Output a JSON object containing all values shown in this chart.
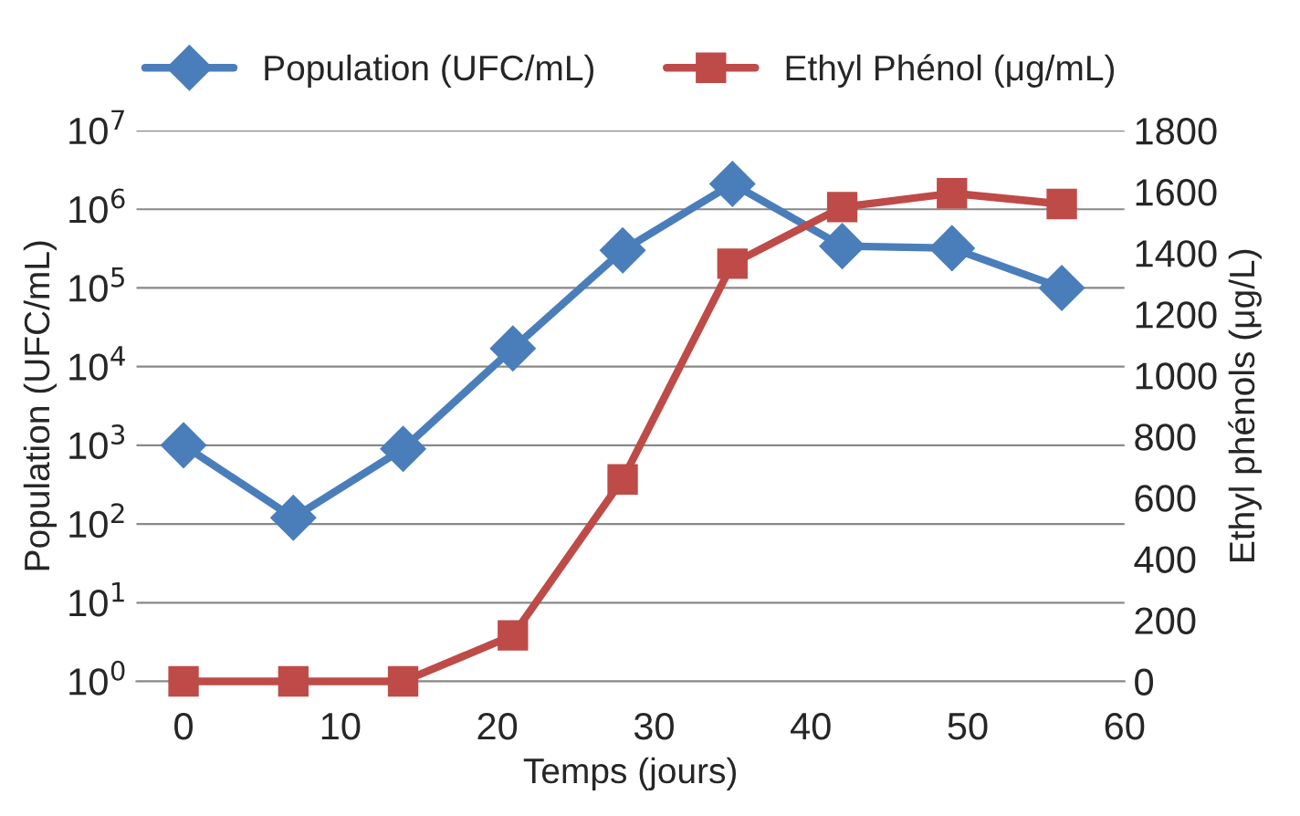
{
  "chart_data": {
    "type": "line",
    "xlabel": "Temps (jours)",
    "ylabel": "Population (UFC/mL)",
    "y2label": "Ethyl phénols (μg/L)",
    "x": [
      0,
      7,
      14,
      21,
      28,
      35,
      42,
      49,
      56
    ],
    "series": [
      {
        "name": "Population (UFC/mL)",
        "color": "#4a7ebb",
        "marker": "diamond",
        "values": [
          1000,
          120,
          900,
          17000,
          300000,
          2100000,
          340000,
          320000,
          100000
        ]
      },
      {
        "name": "Ethyl Phénol (μg/mL)",
        "color": "#be4b48",
        "marker": "square",
        "axis": "y2",
        "values": [
          0,
          0,
          0,
          150,
          660,
          1365,
          1550,
          1595,
          1560
        ]
      }
    ],
    "xlim": [
      -3,
      60
    ],
    "xticks": [
      0,
      10,
      20,
      30,
      40,
      50,
      60
    ],
    "log": "y",
    "ylim": [
      1,
      10000000
    ],
    "yticks": [
      {
        "value": 1,
        "label": "10$^{0}$"
      },
      {
        "value": 10,
        "label": "10$^{1}$"
      },
      {
        "value": 100,
        "label": "10$^{2}$"
      },
      {
        "value": 1000,
        "label": "10$^{3}$"
      },
      {
        "value": 10000,
        "label": "10$^{4}$"
      },
      {
        "value": 100000,
        "label": "10$^{5}$"
      },
      {
        "value": 1000000,
        "label": "10$^{6}$"
      },
      {
        "value": 10000000,
        "label": "10$^{7}$"
      }
    ],
    "y2lim": [
      0,
      1800
    ],
    "y2ticks": [
      0,
      200,
      400,
      600,
      800,
      1000,
      1200,
      1400,
      1600,
      1800
    ],
    "grid": "y",
    "legend": "top",
    "line_style": "solid"
  }
}
